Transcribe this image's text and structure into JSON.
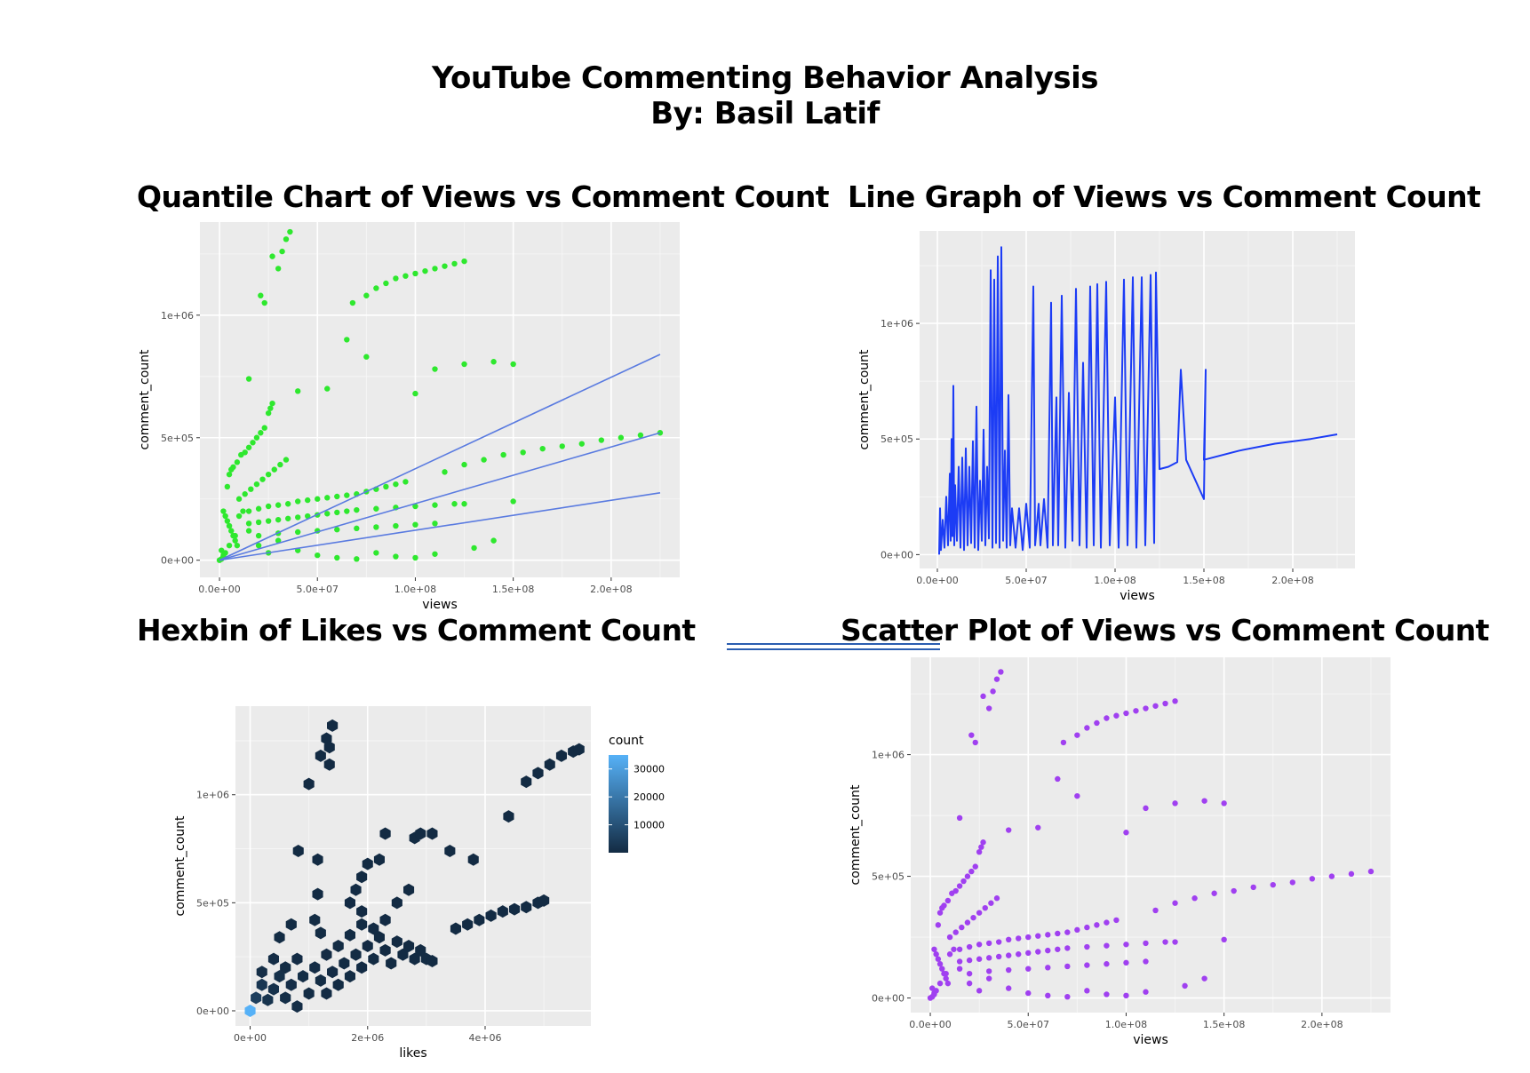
{
  "header": {
    "title": "YouTube Commenting Behavior Analysis",
    "subtitle": "By: Basil Latif"
  },
  "colors": {
    "quantile_points": "#2ee82e",
    "quantile_lines": "#5a7be0",
    "line_graph": "#1c3cf5",
    "scatter_points": "#a040f0",
    "hex_low": "#132b43",
    "hex_high": "#56b1f7"
  },
  "chart_data": [
    {
      "id": "quantile",
      "type": "scatter",
      "title": "Quantile Chart of Views vs Comment Count",
      "xlabel": "views",
      "ylabel": "comment_count",
      "xlim": [
        -10000000,
        235000000
      ],
      "ylim": [
        -70000,
        1380000
      ],
      "xticks": [
        0,
        50000000,
        100000000,
        150000000,
        200000000
      ],
      "xtick_labels": [
        "0.0e+00",
        "5.0e+07",
        "1.0e+08",
        "1.5e+08",
        "2.0e+08"
      ],
      "yticks": [
        0,
        500000,
        1000000
      ],
      "ytick_labels": [
        "0e+00",
        "5e+05",
        "1e+06"
      ],
      "quantile_lines": [
        {
          "x": [
            0,
            225000000
          ],
          "y": [
            0,
            840000
          ]
        },
        {
          "x": [
            0,
            225000000
          ],
          "y": [
            0,
            520000
          ]
        },
        {
          "x": [
            0,
            225000000
          ],
          "y": [
            0,
            275000
          ]
        }
      ]
    },
    {
      "id": "linegraph",
      "type": "line",
      "title": "Line Graph of Views vs Comment Count",
      "xlabel": "views",
      "ylabel": "comment_count",
      "xlim": [
        -10000000,
        235000000
      ],
      "ylim": [
        -60000,
        1400000
      ],
      "xticks": [
        0,
        50000000,
        100000000,
        150000000,
        200000000
      ],
      "xtick_labels": [
        "0.0e+00",
        "5.0e+07",
        "1.0e+08",
        "1.5e+08",
        "2.0e+08"
      ],
      "yticks": [
        0,
        500000,
        1000000
      ],
      "ytick_labels": [
        "0e+00",
        "5e+05",
        "1e+06"
      ]
    },
    {
      "id": "hexbin",
      "type": "heatmap",
      "title": "Hexbin of Likes vs Comment Count",
      "xlabel": "likes",
      "ylabel": "comment_count",
      "xlim": [
        -250000,
        5800000
      ],
      "ylim": [
        -70000,
        1410000
      ],
      "xticks": [
        0,
        2000000,
        4000000
      ],
      "xtick_labels": [
        "0e+00",
        "2e+06",
        "4e+06"
      ],
      "yticks": [
        0,
        500000,
        1000000
      ],
      "ytick_labels": [
        "0e+00",
        "5e+05",
        "1e+06"
      ],
      "legend": {
        "title": "count",
        "position": "right",
        "breaks": [
          30000,
          20000,
          10000
        ],
        "break_labels": [
          "30000",
          "20000",
          "10000"
        ],
        "range": [
          1,
          35000
        ]
      }
    },
    {
      "id": "scatter",
      "type": "scatter",
      "title": "Scatter Plot of Views vs Comment Count",
      "xlabel": "views",
      "ylabel": "comment_count",
      "xlim": [
        -10000000,
        235000000
      ],
      "ylim": [
        -60000,
        1400000
      ],
      "xticks": [
        0,
        50000000,
        100000000,
        150000000,
        200000000
      ],
      "xtick_labels": [
        "0.0e+00",
        "5.0e+07",
        "1.0e+08",
        "1.5e+08",
        "2.0e+08"
      ],
      "yticks": [
        0,
        500000,
        1000000
      ],
      "ytick_labels": [
        "0e+00",
        "5e+05",
        "1e+06"
      ]
    }
  ],
  "points_views_comments": [
    [
      0,
      0
    ],
    [
      1000000,
      5000
    ],
    [
      2000000,
      15000
    ],
    [
      3000000,
      30000
    ],
    [
      5000000,
      60000
    ],
    [
      8000000,
      100000
    ],
    [
      10000000,
      180000
    ],
    [
      12000000,
      200000
    ],
    [
      15000000,
      120000
    ],
    [
      20000000,
      60000
    ],
    [
      25000000,
      30000
    ],
    [
      30000000,
      80000
    ],
    [
      40000000,
      40000
    ],
    [
      50000000,
      20000
    ],
    [
      60000000,
      10000
    ],
    [
      70000000,
      5000
    ],
    [
      80000000,
      30000
    ],
    [
      90000000,
      15000
    ],
    [
      100000000,
      10000
    ],
    [
      110000000,
      25000
    ],
    [
      2000000,
      200000
    ],
    [
      3000000,
      180000
    ],
    [
      4000000,
      160000
    ],
    [
      5000000,
      140000
    ],
    [
      6000000,
      120000
    ],
    [
      7000000,
      100000
    ],
    [
      8000000,
      80000
    ],
    [
      9000000,
      60000
    ],
    [
      1000000,
      40000
    ],
    [
      2000000,
      20000
    ],
    [
      4000000,
      300000
    ],
    [
      5000000,
      350000
    ],
    [
      6000000,
      370000
    ],
    [
      7000000,
      380000
    ],
    [
      9000000,
      400000
    ],
    [
      11000000,
      430000
    ],
    [
      13000000,
      440000
    ],
    [
      15000000,
      460000
    ],
    [
      17000000,
      480000
    ],
    [
      19000000,
      500000
    ],
    [
      21000000,
      520000
    ],
    [
      23000000,
      540000
    ],
    [
      25000000,
      600000
    ],
    [
      26000000,
      620000
    ],
    [
      27000000,
      640000
    ],
    [
      10000000,
      250000
    ],
    [
      13000000,
      270000
    ],
    [
      16000000,
      290000
    ],
    [
      19000000,
      310000
    ],
    [
      22000000,
      330000
    ],
    [
      25000000,
      350000
    ],
    [
      28000000,
      370000
    ],
    [
      31000000,
      390000
    ],
    [
      34000000,
      410000
    ],
    [
      15000000,
      200000
    ],
    [
      20000000,
      210000
    ],
    [
      25000000,
      220000
    ],
    [
      30000000,
      225000
    ],
    [
      35000000,
      230000
    ],
    [
      40000000,
      240000
    ],
    [
      45000000,
      245000
    ],
    [
      50000000,
      250000
    ],
    [
      55000000,
      255000
    ],
    [
      60000000,
      260000
    ],
    [
      65000000,
      265000
    ],
    [
      70000000,
      270000
    ],
    [
      75000000,
      280000
    ],
    [
      80000000,
      290000
    ],
    [
      85000000,
      300000
    ],
    [
      90000000,
      310000
    ],
    [
      95000000,
      320000
    ],
    [
      15000000,
      150000
    ],
    [
      20000000,
      155000
    ],
    [
      25000000,
      160000
    ],
    [
      30000000,
      165000
    ],
    [
      35000000,
      170000
    ],
    [
      40000000,
      175000
    ],
    [
      45000000,
      180000
    ],
    [
      50000000,
      185000
    ],
    [
      55000000,
      190000
    ],
    [
      60000000,
      195000
    ],
    [
      65000000,
      200000
    ],
    [
      70000000,
      205000
    ],
    [
      80000000,
      210000
    ],
    [
      90000000,
      215000
    ],
    [
      100000000,
      220000
    ],
    [
      110000000,
      225000
    ],
    [
      120000000,
      230000
    ],
    [
      20000000,
      100000
    ],
    [
      30000000,
      110000
    ],
    [
      40000000,
      115000
    ],
    [
      50000000,
      120000
    ],
    [
      60000000,
      125000
    ],
    [
      70000000,
      130000
    ],
    [
      80000000,
      135000
    ],
    [
      90000000,
      140000
    ],
    [
      100000000,
      145000
    ],
    [
      110000000,
      150000
    ],
    [
      15000000,
      740000
    ],
    [
      21000000,
      1080000
    ],
    [
      23000000,
      1050000
    ],
    [
      27000000,
      1240000
    ],
    [
      30000000,
      1190000
    ],
    [
      32000000,
      1260000
    ],
    [
      34000000,
      1310000
    ],
    [
      36000000,
      1340000
    ],
    [
      40000000,
      690000
    ],
    [
      55000000,
      700000
    ],
    [
      65000000,
      900000
    ],
    [
      68000000,
      1050000
    ],
    [
      75000000,
      1080000
    ],
    [
      80000000,
      1110000
    ],
    [
      85000000,
      1130000
    ],
    [
      90000000,
      1150000
    ],
    [
      95000000,
      1160000
    ],
    [
      100000000,
      1170000
    ],
    [
      105000000,
      1180000
    ],
    [
      110000000,
      1190000
    ],
    [
      115000000,
      1200000
    ],
    [
      120000000,
      1210000
    ],
    [
      125000000,
      1220000
    ],
    [
      75000000,
      830000
    ],
    [
      100000000,
      680000
    ],
    [
      110000000,
      780000
    ],
    [
      125000000,
      800000
    ],
    [
      140000000,
      810000
    ],
    [
      150000000,
      800000
    ],
    [
      115000000,
      360000
    ],
    [
      125000000,
      390000
    ],
    [
      135000000,
      410000
    ],
    [
      145000000,
      430000
    ],
    [
      155000000,
      440000
    ],
    [
      165000000,
      455000
    ],
    [
      175000000,
      465000
    ],
    [
      185000000,
      475000
    ],
    [
      195000000,
      490000
    ],
    [
      205000000,
      500000
    ],
    [
      215000000,
      510000
    ],
    [
      225000000,
      520000
    ],
    [
      125000000,
      230000
    ],
    [
      150000000,
      240000
    ],
    [
      140000000,
      80000
    ],
    [
      130000000,
      50000
    ]
  ],
  "hexbins": [
    [
      0,
      0,
      35000
    ],
    [
      100000,
      60000,
      5000
    ],
    [
      200000,
      120000,
      3000
    ],
    [
      300000,
      50000,
      2000
    ],
    [
      400000,
      100000,
      1500
    ],
    [
      500000,
      160000,
      1200
    ],
    [
      600000,
      60000,
      1000
    ],
    [
      700000,
      120000,
      900
    ],
    [
      800000,
      20000,
      800
    ],
    [
      900000,
      160000,
      700
    ],
    [
      1000000,
      80000,
      600
    ],
    [
      1100000,
      200000,
      500
    ],
    [
      1200000,
      140000,
      400
    ],
    [
      1300000,
      80000,
      350
    ],
    [
      1400000,
      180000,
      300
    ],
    [
      1500000,
      120000,
      250
    ],
    [
      1600000,
      220000,
      200
    ],
    [
      1700000,
      160000,
      180
    ],
    [
      1800000,
      260000,
      150
    ],
    [
      1900000,
      200000,
      120
    ],
    [
      2000000,
      300000,
      100
    ],
    [
      2100000,
      240000,
      90
    ],
    [
      2200000,
      340000,
      80
    ],
    [
      2300000,
      280000,
      70
    ],
    [
      2400000,
      220000,
      60
    ],
    [
      2500000,
      320000,
      50
    ],
    [
      2600000,
      260000,
      40
    ],
    [
      2700000,
      300000,
      30
    ],
    [
      2800000,
      240000,
      25
    ],
    [
      2900000,
      280000,
      20
    ],
    [
      3000000,
      240000,
      15
    ],
    [
      3100000,
      230000,
      10
    ],
    [
      200000,
      180000,
      800
    ],
    [
      400000,
      240000,
      500
    ],
    [
      600000,
      200000,
      400
    ],
    [
      800000,
      240000,
      300
    ],
    [
      500000,
      340000,
      200
    ],
    [
      700000,
      400000,
      150
    ],
    [
      1100000,
      420000,
      200
    ],
    [
      1200000,
      360000,
      150
    ],
    [
      1300000,
      260000,
      300
    ],
    [
      1500000,
      300000,
      250
    ],
    [
      1700000,
      350000,
      200
    ],
    [
      1900000,
      400000,
      150
    ],
    [
      2100000,
      380000,
      120
    ],
    [
      2300000,
      420000,
      100
    ],
    [
      2500000,
      500000,
      80
    ],
    [
      2700000,
      560000,
      60
    ],
    [
      1700000,
      500000,
      120
    ],
    [
      1800000,
      560000,
      100
    ],
    [
      1900000,
      620000,
      90
    ],
    [
      2000000,
      680000,
      80
    ],
    [
      1900000,
      460000,
      100
    ],
    [
      2200000,
      700000,
      60
    ],
    [
      1000000,
      1050000,
      40
    ],
    [
      1200000,
      1180000,
      30
    ],
    [
      1300000,
      1260000,
      25
    ],
    [
      1400000,
      1320000,
      20
    ],
    [
      1350000,
      1220000,
      25
    ],
    [
      1350000,
      1140000,
      25
    ],
    [
      820000,
      740000,
      40
    ],
    [
      1150000,
      700000,
      40
    ],
    [
      1150000,
      540000,
      50
    ],
    [
      2300000,
      820000,
      40
    ],
    [
      2800000,
      800000,
      40
    ],
    [
      2900000,
      820000,
      40
    ],
    [
      3100000,
      820000,
      40
    ],
    [
      3400000,
      740000,
      40
    ],
    [
      3800000,
      700000,
      40
    ],
    [
      3500000,
      380000,
      40
    ],
    [
      3700000,
      400000,
      40
    ],
    [
      3900000,
      420000,
      40
    ],
    [
      4100000,
      440000,
      40
    ],
    [
      4300000,
      460000,
      40
    ],
    [
      4500000,
      470000,
      40
    ],
    [
      4700000,
      480000,
      40
    ],
    [
      4900000,
      500000,
      40
    ],
    [
      5000000,
      510000,
      40
    ],
    [
      4400000,
      900000,
      40
    ],
    [
      4700000,
      1060000,
      40
    ],
    [
      4900000,
      1100000,
      40
    ],
    [
      5100000,
      1140000,
      40
    ],
    [
      5300000,
      1180000,
      40
    ],
    [
      5500000,
      1200000,
      40
    ],
    [
      5600000,
      1210000,
      40
    ]
  ],
  "line_graph_spikes": [
    [
      1000000,
      0
    ],
    [
      1500000,
      200000
    ],
    [
      2000000,
      20000
    ],
    [
      3000000,
      150000
    ],
    [
      4000000,
      30000
    ],
    [
      5000000,
      250000
    ],
    [
      6000000,
      40000
    ],
    [
      7000000,
      350000
    ],
    [
      7500000,
      60000
    ],
    [
      8000000,
      500000
    ],
    [
      8500000,
      80000
    ],
    [
      9000000,
      730000
    ],
    [
      9500000,
      40000
    ],
    [
      10000000,
      300000
    ],
    [
      11000000,
      60000
    ],
    [
      12000000,
      380000
    ],
    [
      13000000,
      30000
    ],
    [
      14000000,
      420000
    ],
    [
      15000000,
      20000
    ],
    [
      16000000,
      460000
    ],
    [
      17000000,
      40000
    ],
    [
      18000000,
      380000
    ],
    [
      19000000,
      50000
    ],
    [
      20000000,
      490000
    ],
    [
      21000000,
      30000
    ],
    [
      22000000,
      640000
    ],
    [
      23000000,
      20000
    ],
    [
      24000000,
      320000
    ],
    [
      25000000,
      60000
    ],
    [
      26000000,
      540000
    ],
    [
      27000000,
      40000
    ],
    [
      28000000,
      380000
    ],
    [
      29000000,
      70000
    ],
    [
      30000000,
      1230000
    ],
    [
      31000000,
      30000
    ],
    [
      32000000,
      1190000
    ],
    [
      33000000,
      50000
    ],
    [
      34000000,
      1290000
    ],
    [
      35000000,
      30000
    ],
    [
      36000000,
      1330000
    ],
    [
      37000000,
      60000
    ],
    [
      38000000,
      450000
    ],
    [
      39000000,
      30000
    ],
    [
      40000000,
      690000
    ],
    [
      41000000,
      40000
    ],
    [
      42000000,
      200000
    ],
    [
      44000000,
      30000
    ],
    [
      46000000,
      200000
    ],
    [
      48000000,
      20000
    ],
    [
      50000000,
      220000
    ],
    [
      52000000,
      30000
    ],
    [
      54000000,
      1160000
    ],
    [
      55000000,
      40000
    ],
    [
      57000000,
      220000
    ],
    [
      58000000,
      40000
    ],
    [
      60000000,
      240000
    ],
    [
      62000000,
      30000
    ],
    [
      64000000,
      1090000
    ],
    [
      65000000,
      40000
    ],
    [
      67000000,
      680000
    ],
    [
      68000000,
      40000
    ],
    [
      70000000,
      1120000
    ],
    [
      72000000,
      30000
    ],
    [
      74000000,
      700000
    ],
    [
      76000000,
      60000
    ],
    [
      78000000,
      1150000
    ],
    [
      80000000,
      40000
    ],
    [
      82000000,
      830000
    ],
    [
      84000000,
      30000
    ],
    [
      86000000,
      1160000
    ],
    [
      88000000,
      40000
    ],
    [
      90000000,
      1170000
    ],
    [
      92000000,
      30000
    ],
    [
      95000000,
      1180000
    ],
    [
      97000000,
      40000
    ],
    [
      100000000,
      680000
    ],
    [
      102000000,
      30000
    ],
    [
      105000000,
      1190000
    ],
    [
      107000000,
      40000
    ],
    [
      110000000,
      1200000
    ],
    [
      112000000,
      30000
    ],
    [
      115000000,
      1200000
    ],
    [
      117000000,
      40000
    ],
    [
      120000000,
      1210000
    ],
    [
      122000000,
      50000
    ],
    [
      123000000,
      1220000
    ],
    [
      125000000,
      370000
    ],
    [
      130000000,
      380000
    ],
    [
      135000000,
      400000
    ],
    [
      137000000,
      800000
    ],
    [
      140000000,
      410000
    ],
    [
      150000000,
      240000
    ],
    [
      151000000,
      800000
    ],
    [
      150000000,
      410000
    ],
    [
      170000000,
      450000
    ],
    [
      190000000,
      480000
    ],
    [
      210000000,
      500000
    ],
    [
      225000000,
      520000
    ]
  ]
}
